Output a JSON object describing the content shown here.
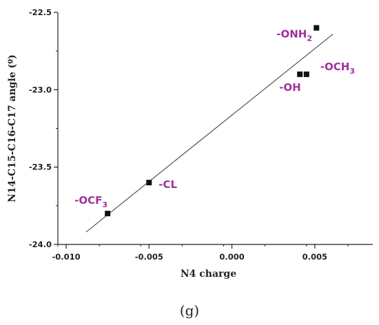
{
  "panel_label": "(g)",
  "colors": {
    "label": "#a0309a",
    "marker": "#111111",
    "axis": "#222222",
    "fit_line": "#333333"
  },
  "chart_data": {
    "type": "scatter",
    "xlabel": "N4 charge",
    "ylabel": "N14-C15-C16-C17 angle (º)",
    "xlim": [
      -0.0105,
      0.0085
    ],
    "ylim": [
      -24.0,
      -22.5
    ],
    "x_ticks": [
      -0.01,
      -0.005,
      0.0,
      0.005
    ],
    "x_tick_labels": [
      "-0.010",
      "-0.005",
      "0.000",
      "0.005"
    ],
    "y_ticks": [
      -24.0,
      -23.5,
      -23.0,
      -22.5
    ],
    "y_tick_labels": [
      "-24.0",
      "-23.5",
      "-23.0",
      "-22.5"
    ],
    "grid": false,
    "points": [
      {
        "x": -0.0075,
        "y": -23.8,
        "label": "-OCF",
        "sub": "3"
      },
      {
        "x": -0.005,
        "y": -23.6,
        "label": "-CL",
        "sub": ""
      },
      {
        "x": 0.0041,
        "y": -22.9,
        "label": "-OH",
        "sub": ""
      },
      {
        "x": 0.0045,
        "y": -22.9,
        "label": "-OCH",
        "sub": "3"
      },
      {
        "x": 0.0051,
        "y": -22.6,
        "label": "-ONH",
        "sub": "2"
      }
    ],
    "fit_line": {
      "x": [
        -0.0088,
        0.0061
      ],
      "y": [
        -23.92,
        -22.64
      ]
    }
  }
}
